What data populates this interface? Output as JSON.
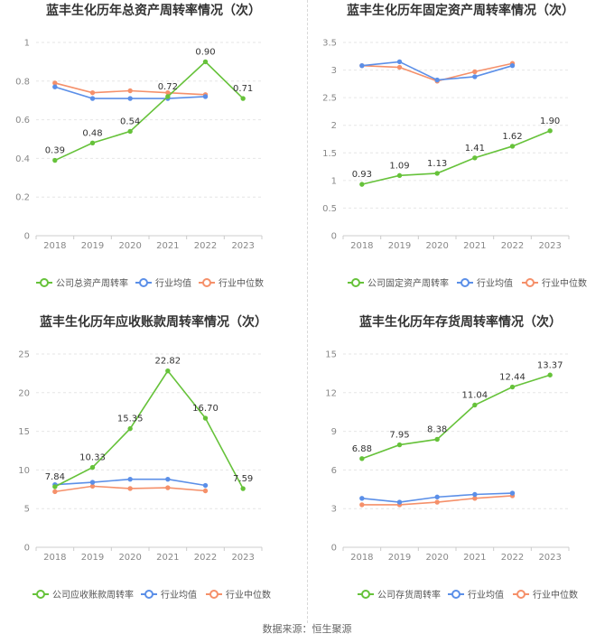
{
  "colors": {
    "company": "#66c23a",
    "avg": "#5b8fe8",
    "median": "#f5906a",
    "grid": "#e6e6e6",
    "axis": "#cccccc"
  },
  "legend": {
    "company_total": "公司总资产周转率",
    "company_fixed": "公司固定资产周转率",
    "company_ar": "公司应收账款周转率",
    "company_inv": "公司存货周转率",
    "avg": "行业均值",
    "median": "行业中位数"
  },
  "source": "数据来源：恒生聚源",
  "chart_data": [
    {
      "type": "line",
      "title": "蓝丰生化历年总资产周转率情况（次）",
      "x": [
        "2018",
        "2019",
        "2020",
        "2021",
        "2022",
        "2023"
      ],
      "ylim": [
        0,
        1
      ],
      "yticks": [
        "0",
        "0.2",
        "0.4",
        "0.6",
        "0.8",
        "1"
      ],
      "series": [
        {
          "name": "公司总资产周转率",
          "values": [
            0.39,
            0.48,
            0.54,
            0.72,
            0.9,
            0.71
          ],
          "labels": [
            "0.39",
            "0.48",
            "0.54",
            "0.72",
            "0.90",
            "0.71"
          ]
        },
        {
          "name": "行业均值",
          "values": [
            0.77,
            0.71,
            0.71,
            0.71,
            0.72,
            null
          ]
        },
        {
          "name": "行业中位数",
          "values": [
            0.79,
            0.74,
            0.75,
            0.74,
            0.73,
            null
          ]
        }
      ]
    },
    {
      "type": "line",
      "title": "蓝丰生化历年固定资产周转率情况（次）",
      "x": [
        "2018",
        "2019",
        "2020",
        "2021",
        "2022",
        "2023"
      ],
      "ylim": [
        0,
        3.5
      ],
      "yticks": [
        "0",
        "0.5",
        "1",
        "1.5",
        "2",
        "2.5",
        "3",
        "3.5"
      ],
      "series": [
        {
          "name": "公司固定资产周转率",
          "values": [
            0.93,
            1.09,
            1.13,
            1.41,
            1.62,
            1.9
          ],
          "labels": [
            "0.93",
            "1.09",
            "1.13",
            "1.41",
            "1.62",
            "1.90"
          ]
        },
        {
          "name": "行业均值",
          "values": [
            3.08,
            3.15,
            2.82,
            2.88,
            3.08,
            null
          ]
        },
        {
          "name": "行业中位数",
          "values": [
            3.08,
            3.05,
            2.8,
            2.97,
            3.12,
            null
          ]
        }
      ]
    },
    {
      "type": "line",
      "title": "蓝丰生化历年应收账款周转率情况（次）",
      "x": [
        "2018",
        "2019",
        "2020",
        "2021",
        "2022",
        "2023"
      ],
      "ylim": [
        0,
        25
      ],
      "yticks": [
        "0",
        "5",
        "10",
        "15",
        "20",
        "25"
      ],
      "series": [
        {
          "name": "公司应收账款周转率",
          "values": [
            7.84,
            10.33,
            15.35,
            22.82,
            16.7,
            7.59
          ],
          "labels": [
            "7.84",
            "10.33",
            "15.35",
            "22.82",
            "16.70",
            "7.59"
          ]
        },
        {
          "name": "行业均值",
          "values": [
            8.1,
            8.4,
            8.8,
            8.8,
            8.0,
            null
          ]
        },
        {
          "name": "行业中位数",
          "values": [
            7.2,
            7.9,
            7.6,
            7.7,
            7.3,
            null
          ]
        }
      ]
    },
    {
      "type": "line",
      "title": "蓝丰生化历年存货周转率情况（次）",
      "x": [
        "2018",
        "2019",
        "2020",
        "2021",
        "2022",
        "2023"
      ],
      "ylim": [
        0,
        15
      ],
      "yticks": [
        "0",
        "3",
        "6",
        "9",
        "12",
        "15"
      ],
      "series": [
        {
          "name": "公司存货周转率",
          "values": [
            6.88,
            7.95,
            8.38,
            11.04,
            12.44,
            13.37
          ],
          "labels": [
            "6.88",
            "7.95",
            "8.38",
            "11.04",
            "12.44",
            "13.37"
          ]
        },
        {
          "name": "行业均值",
          "values": [
            3.8,
            3.5,
            3.9,
            4.1,
            4.2,
            null
          ]
        },
        {
          "name": "行业中位数",
          "values": [
            3.3,
            3.3,
            3.5,
            3.8,
            4.0,
            null
          ]
        }
      ]
    }
  ]
}
